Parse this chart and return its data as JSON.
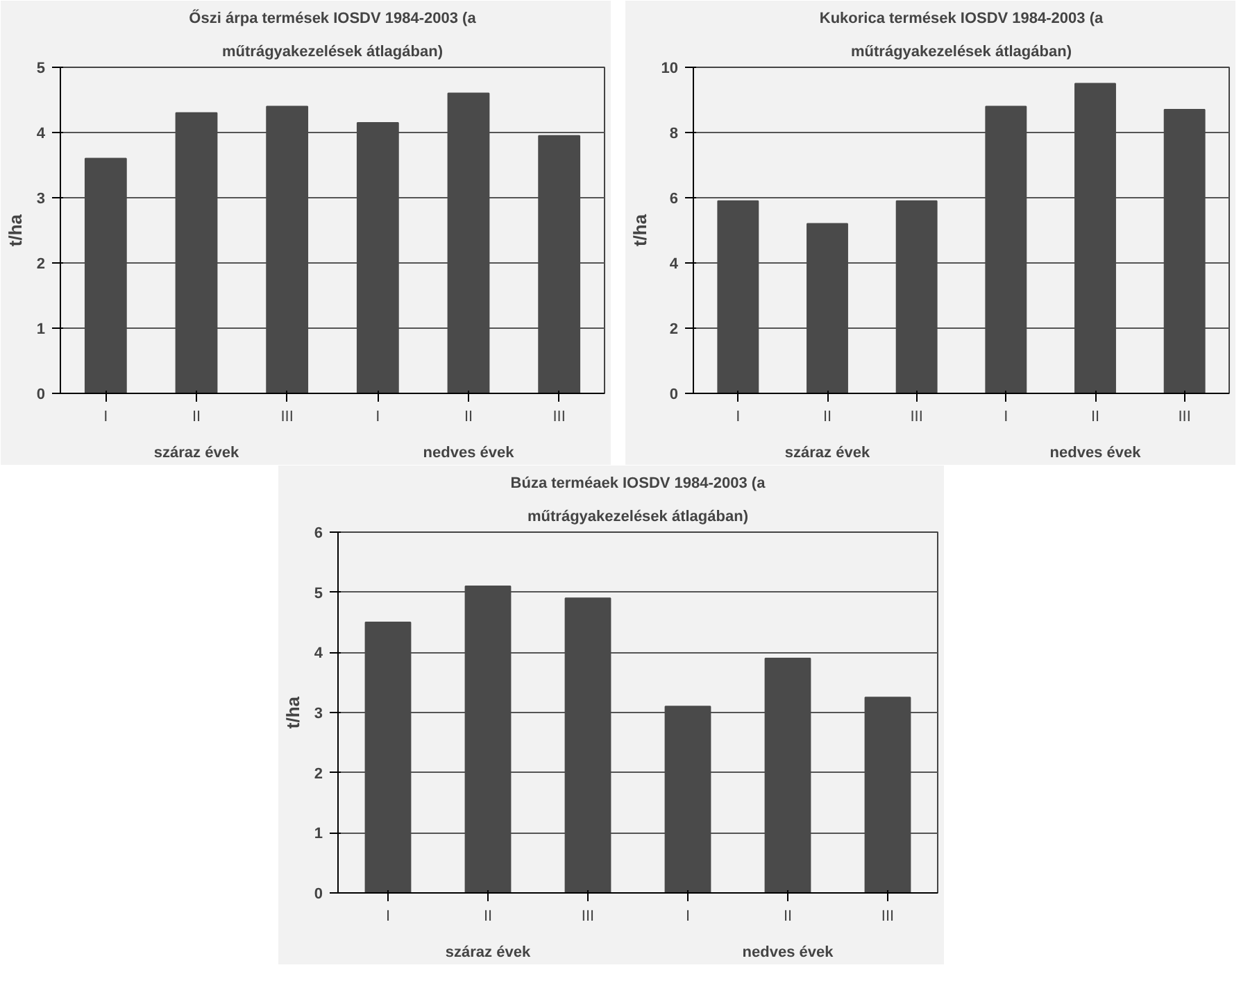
{
  "chart_data": [
    {
      "type": "bar",
      "title": "Őszi árpa termések IOSDV 1984-2003 (a",
      "subtitle": "műtrágyakezelések átlagában)",
      "ylabel": "t/ha",
      "categories": [
        "I",
        "II",
        "III",
        "I",
        "II",
        "III"
      ],
      "values": [
        3.6,
        4.3,
        4.4,
        4.15,
        4.6,
        3.95
      ],
      "color": "#4a4a4a",
      "ylim": [
        0,
        5
      ],
      "yticks": [
        0,
        1,
        2,
        3,
        4,
        5
      ],
      "grid": "y",
      "annotations": [
        "száraz évek",
        "nedves évek"
      ]
    },
    {
      "type": "bar",
      "title": "Kukorica termések IOSDV 1984-2003 (a",
      "subtitle": "műtrágyakezelések átlagában)",
      "ylabel": "t/ha",
      "categories": [
        "I",
        "II",
        "III",
        "I",
        "II",
        "III"
      ],
      "values": [
        5.9,
        5.2,
        5.9,
        8.8,
        9.5,
        8.7
      ],
      "color": "#4a4a4a",
      "ylim": [
        0,
        10
      ],
      "yticks": [
        0,
        2,
        4,
        6,
        8,
        10
      ],
      "grid": "y",
      "annotations": [
        "száraz évek",
        "nedves évek"
      ]
    },
    {
      "type": "bar",
      "title": "Búza terméaek IOSDV 1984-2003 (a",
      "subtitle": "műtrágyakezelések átlagában)",
      "ylabel": "t/ha",
      "categories": [
        "I",
        "II",
        "III",
        "I",
        "II",
        "III"
      ],
      "values": [
        4.5,
        5.1,
        4.9,
        3.1,
        3.9,
        3.25
      ],
      "color": "#4a4a4a",
      "ylim": [
        0,
        6
      ],
      "yticks": [
        0,
        1,
        2,
        3,
        4,
        5,
        6
      ],
      "grid": "y",
      "annotations": [
        "száraz évek",
        "nedves évek"
      ]
    }
  ]
}
